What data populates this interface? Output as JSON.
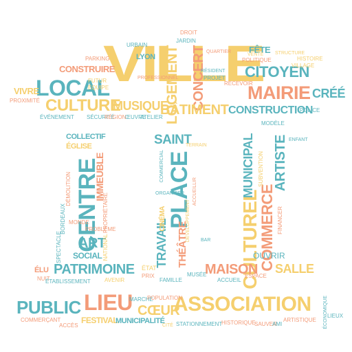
{
  "title": "Word cloud in the shape of a civic building (town hall)",
  "palette": {
    "yellow": "#f5cf6e",
    "blue": "#5ab4bd",
    "orange": "#f39b78"
  },
  "words": {
    "ville": "VILLE",
    "association": "ASSOCIATION",
    "place": "PLACE",
    "lieu": "LIEU",
    "mairie": "MAIRIE",
    "local": "LOCAL",
    "culture": "CULTURE",
    "batiment": "BÂTIMENT",
    "logement": "LOGEMENT",
    "concert": "CONCERT",
    "citoyen": "CITOYEN",
    "public": "PUBLIC",
    "musique": "MUSIQUE",
    "construction": "CONSTRUCTION",
    "cree": "CRÉÉ",
    "centre": "CENTRE",
    "saint": "SAINT",
    "patrimoine": "PATRIMOINE",
    "maison": "MAISON",
    "salle": "SALLE",
    "culturel": "CULTUREL",
    "commerce": "COMMERCE",
    "artiste": "ARTISTE",
    "municipal": "MUNICIPAL",
    "art": "ART",
    "travail": "TRAVAIL",
    "theatre": "THÉÂTRE",
    "coeur": "CŒUR",
    "social": "SOCIAL",
    "collectif": "COLLECTIF",
    "eglise": "ÉGLISE",
    "immeuble": "IMMEUBLE",
    "lyon": "LYON",
    "fete": "FÊTE",
    "construire": "CONSTRUIRE",
    "vivre": "VIVRE",
    "festival": "FESTIVAL",
    "municipalite": "MUNICIPALITÉ",
    "cinema": "CINÉMA",
    "ouvrir": "OUVRIR",
    "elu": "ÉLU",
    "jardin": "JARDIN",
    "parking": "PARKING",
    "politique": "POLITIQUE",
    "histoire": "HISTOIRE",
    "futur": "FUTUR",
    "equipe": "ÉQUIPE",
    "proximite": "PROXIMITÉ",
    "evenement": "ÉVÉNEMENT",
    "securite": "SÉCURITÉ",
    "region": "RÉGION",
    "oeuvre": "ŒUVRE",
    "atelier": "ATELIER",
    "police": "POLICE",
    "projet": "PROJET",
    "urbain": "URBAIN",
    "droit": "DROIT",
    "recevoir": "RECEVOIR",
    "village": "VILLAGE",
    "modele": "MODÈLE",
    "organiser": "ORGANISER",
    "commercial": "COMMERCIAL",
    "developpement": "DÉVELOPPEMENT",
    "accueillir": "ACCUEILLIR",
    "spectacle": "SPECTACLE",
    "national": "NATIONAL",
    "monde": "MONDE",
    "probleme": "PROBLÈME",
    "proprietaire": "PROPRIÉTAIRE",
    "bordeaux": "BORDEAUX",
    "demolition": "DÉMOLITION",
    "financer": "FINANCER",
    "subvention": "SUBVENTION",
    "nuit": "NUIT",
    "etablissement": "ÉTABLISSEMENT",
    "avenir": "AVENIR",
    "etat": "ÉTAT",
    "famille": "FAMILLE",
    "musee": "MUSÉE",
    "acces": "ACCÈS",
    "commercant": "COMMERÇANT",
    "marche": "MARCHÉ",
    "population": "POPULATION",
    "stationnement": "STATIONNEMENT",
    "historique": "HISTORIQUE",
    "sauver": "SAUVER",
    "artistique": "ARTISTIQUE",
    "economique": "ÉCONOMIQUE",
    "lieux": "LIEUX",
    "accueil": "ACCUEIL",
    "ami": "AMI",
    "cite": "CITÉ",
    "bar": "BAR",
    "vente": "VENTE",
    "permettre": "PERMETTRE",
    "rencontre": "RENCONTRE",
    "espace": "ESPACE",
    "emploi": "EMPLOI",
    "professionnel": "PROFESSIONNEL",
    "resident": "RÉSIDENT",
    "quartier": "QUARTIER",
    "structure": "STRUCTURE",
    "terrain": "TERRAIN",
    "enfant": "ENFANT",
    "rue": "RUE",
    "ecole": "ÉCOLE",
    "rapport": "RAPPORT",
    "conseil": "CONSEIL",
    "travaux": "TRAVAUX",
    "batiments": "BÂTIMENTS",
    "communaute": "COMMUNAUTÉ",
    "sport": "SPORT",
    "solidarite": "SOLIDARITÉ",
    "metropole": "MÉTROPOLE",
    "habitant": "HABITANT",
    "service": "SERVICE",
    "entreprise": "ENTREPRISE",
    "paris": "PARIS",
    "prix": "PRIX"
  }
}
